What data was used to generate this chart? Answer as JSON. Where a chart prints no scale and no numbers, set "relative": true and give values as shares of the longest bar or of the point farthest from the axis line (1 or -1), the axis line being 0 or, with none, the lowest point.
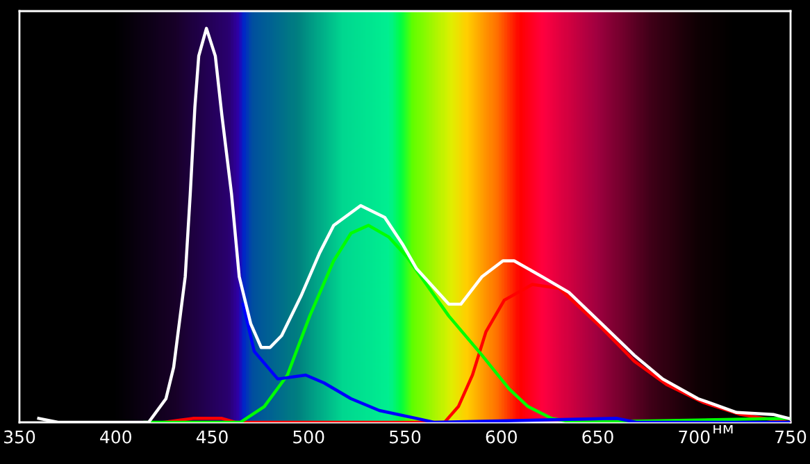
{
  "chart_data": {
    "type": "line",
    "relative": true,
    "xlabel": "нм",
    "xlim": [
      350,
      750
    ],
    "xticks": [
      350,
      400,
      450,
      500,
      550,
      600,
      650,
      700,
      750
    ],
    "tick_labels": "x",
    "grid": false,
    "legend": false,
    "series": [
      {
        "color": "#ffffff",
        "x": [
          360,
          370,
          400,
          417,
          426,
          430,
          436,
          438.6,
          441,
          443,
          447,
          451.6,
          455,
          460,
          464,
          470,
          475.4,
          480,
          486,
          496,
          505.7,
          513,
          527,
          539.5,
          549,
          556,
          572.7,
          579,
          590,
          600.8,
          606.6,
          621,
          635,
          652,
          669,
          683.7,
          702,
          722,
          741,
          749
        ],
        "values": [
          0.01,
          0.0,
          0.0,
          0.0,
          0.06,
          0.14,
          0.37,
          0.58,
          0.8,
          0.93,
          1.0,
          0.93,
          0.78,
          0.58,
          0.37,
          0.25,
          0.19,
          0.19,
          0.22,
          0.32,
          0.43,
          0.5,
          0.55,
          0.52,
          0.45,
          0.39,
          0.3,
          0.3,
          0.37,
          0.41,
          0.41,
          0.37,
          0.33,
          0.25,
          0.17,
          0.11,
          0.06,
          0.025,
          0.02,
          0.01
        ]
      },
      {
        "color": "#0000ff",
        "x": [
          466,
          471.8,
          484,
          498.5,
          508,
          522,
          536.7,
          556,
          565,
          660,
          670,
          749
        ],
        "values": [
          0.3,
          0.18,
          0.11,
          0.12,
          0.1,
          0.06,
          0.03,
          0.01,
          0.0,
          0.01,
          0.0,
          0.0
        ]
      },
      {
        "color": "#00ff00",
        "x": [
          415,
          464.6,
          477,
          489,
          500.6,
          513,
          522,
          531,
          541.7,
          551,
          572.7,
          590,
          604,
          613.8,
          626,
          638,
          749
        ],
        "values": [
          0.0,
          0.0,
          0.04,
          0.12,
          0.27,
          0.41,
          0.48,
          0.5,
          0.47,
          0.42,
          0.27,
          0.17,
          0.085,
          0.04,
          0.01,
          0.0,
          0.01
        ]
      },
      {
        "color": "#ff0000",
        "x": [
          425,
          440,
          447,
          455,
          462,
          570.5,
          577.7,
          585,
          592,
          601.5,
          616,
          630,
          652,
          669,
          686,
          705,
          724,
          749
        ],
        "values": [
          0.0,
          0.01,
          0.01,
          0.01,
          0.0,
          0.0,
          0.04,
          0.12,
          0.23,
          0.31,
          0.35,
          0.34,
          0.24,
          0.155,
          0.095,
          0.05,
          0.02,
          0.0
        ]
      }
    ]
  }
}
